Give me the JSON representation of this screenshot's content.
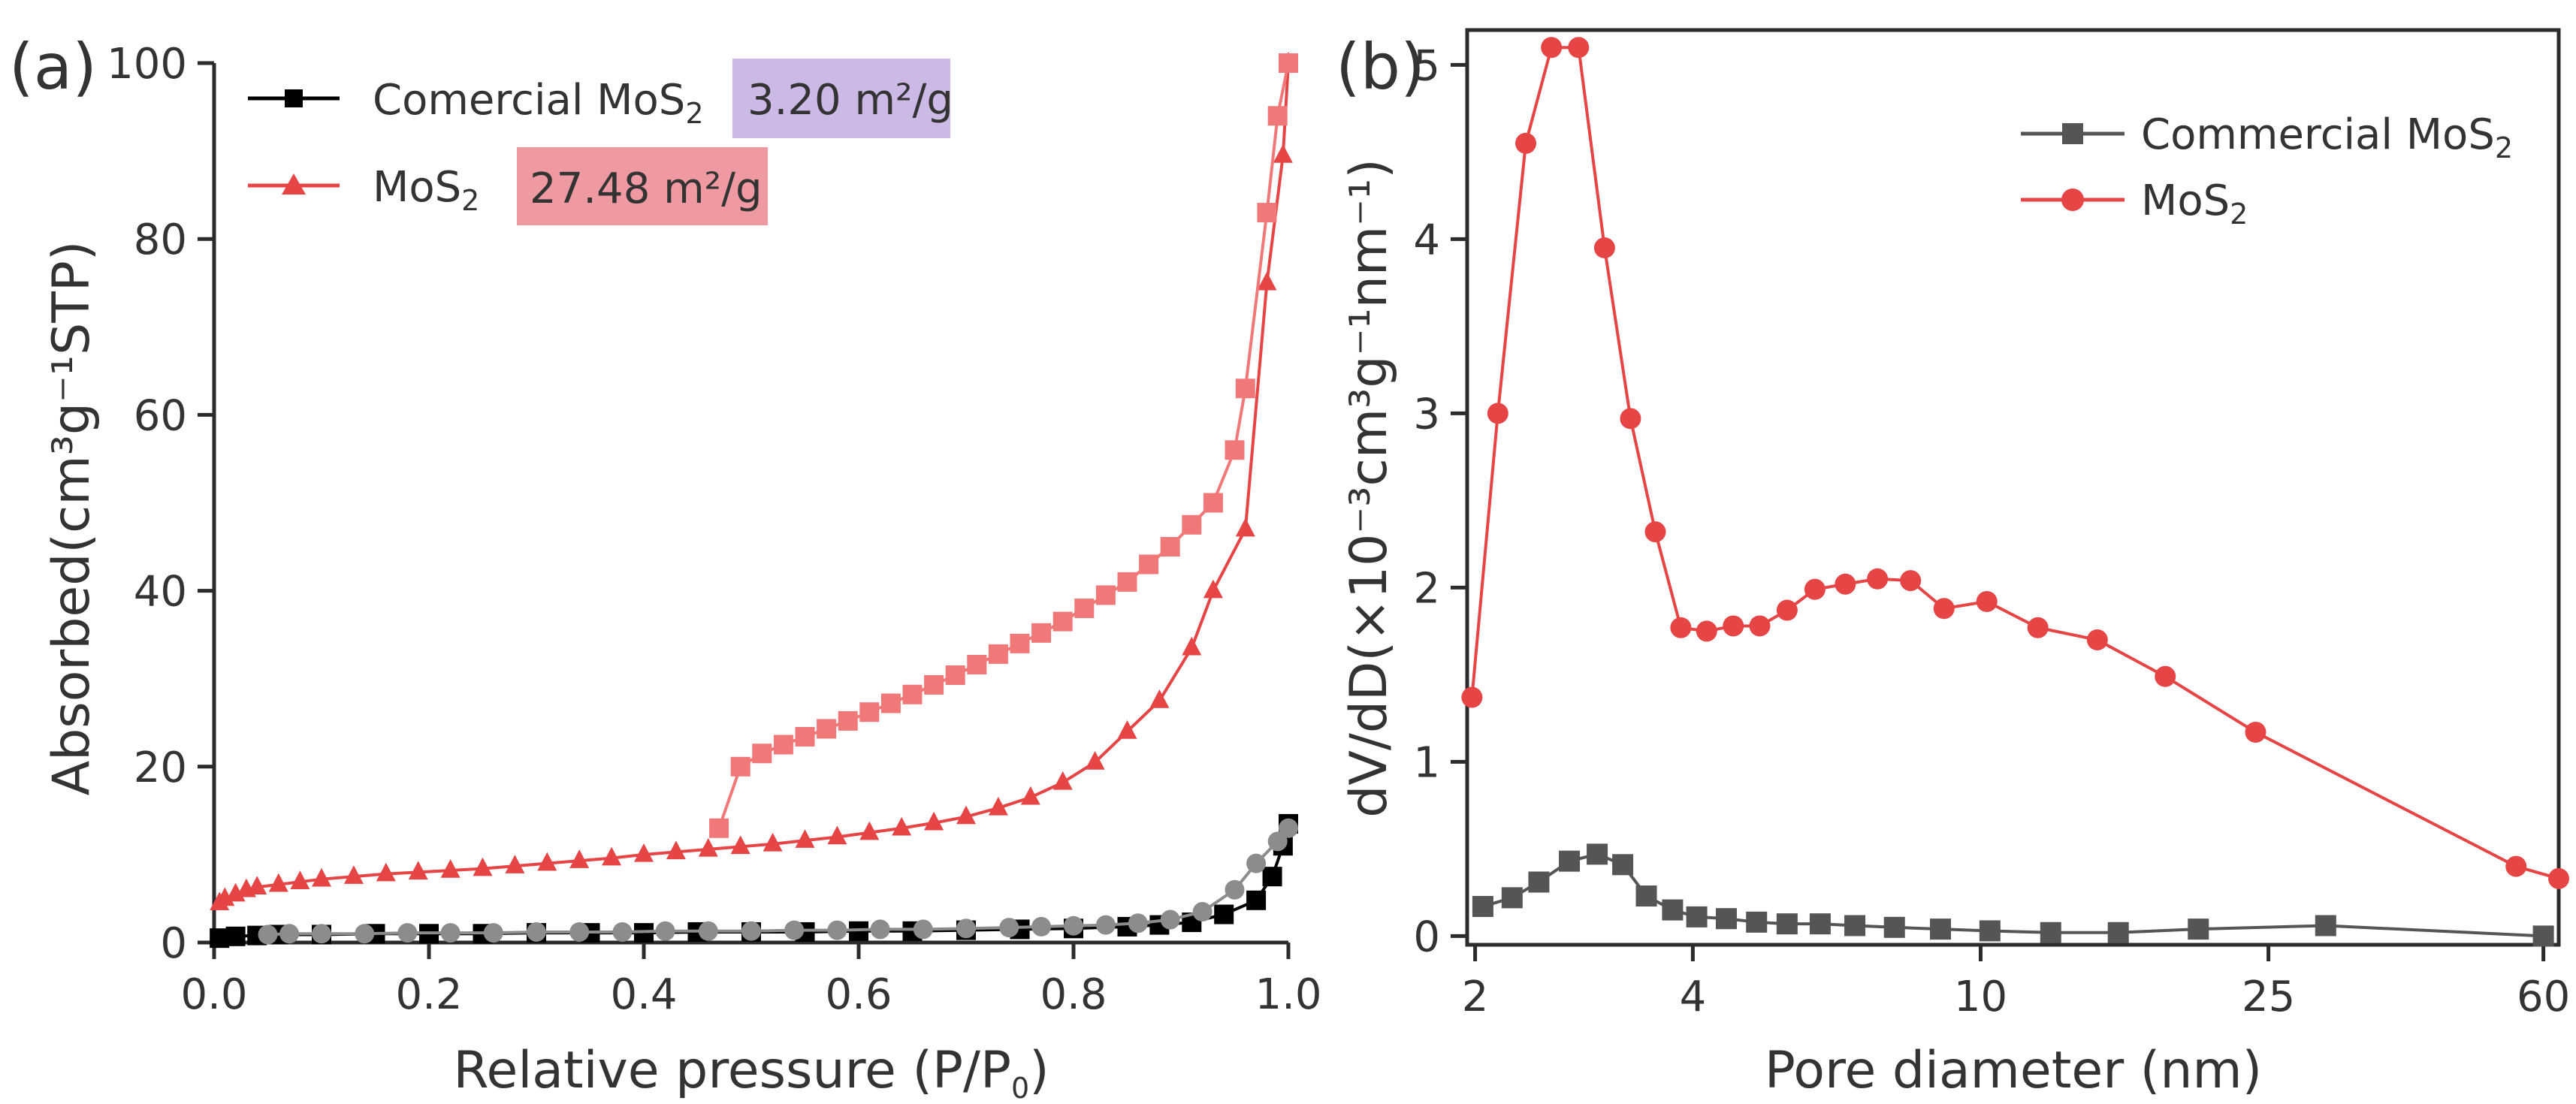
{
  "chart_data": [
    {
      "panel": "(a)",
      "type": "line",
      "title": "",
      "xlabel": "Relative pressure (P/P",
      "xlabel_sub": "0",
      "xlabel_close": ")",
      "ylabel": "Absorbed(cm³g⁻¹STP)",
      "xlim": [
        0.0,
        1.0
      ],
      "ylim": [
        0,
        100
      ],
      "xticks": [
        "0.0",
        "0.2",
        "0.4",
        "0.6",
        "0.8",
        "1.0"
      ],
      "xtick_values": [
        0.0,
        0.2,
        0.4,
        0.6,
        0.8,
        1.0
      ],
      "yticks": [
        "0",
        "20",
        "40",
        "60",
        "80",
        "100"
      ],
      "ytick_values": [
        0,
        20,
        40,
        60,
        80,
        100
      ],
      "legend": [
        {
          "label": "Comercial MoS",
          "sub": "2",
          "marker": "square",
          "color": "#000000",
          "badge": "3.20 m²/g",
          "badge_color": "#cdb9e6"
        },
        {
          "label": "MoS",
          "sub": "2",
          "marker": "triangle",
          "color": "#e64545",
          "badge": "27.48 m²/g",
          "badge_color": "#ef9aa2"
        }
      ],
      "series": [
        {
          "name": "MoS2 adsorption",
          "color": "#e64545",
          "marker": "triangle",
          "x": [
            0.005,
            0.01,
            0.02,
            0.03,
            0.04,
            0.06,
            0.08,
            0.1,
            0.13,
            0.16,
            0.19,
            0.22,
            0.25,
            0.28,
            0.31,
            0.34,
            0.37,
            0.4,
            0.43,
            0.46,
            0.49,
            0.52,
            0.55,
            0.58,
            0.61,
            0.64,
            0.67,
            0.7,
            0.73,
            0.76,
            0.79,
            0.82,
            0.85,
            0.88,
            0.91,
            0.93,
            0.96,
            0.98,
            0.995,
            1.0
          ],
          "y": [
            4.5,
            5.0,
            5.5,
            6.0,
            6.3,
            6.6,
            6.9,
            7.2,
            7.5,
            7.8,
            8.0,
            8.2,
            8.4,
            8.7,
            9.0,
            9.3,
            9.6,
            10.0,
            10.3,
            10.6,
            10.9,
            11.2,
            11.6,
            12.0,
            12.5,
            13.0,
            13.6,
            14.3,
            15.3,
            16.5,
            18.2,
            20.5,
            24.0,
            27.5,
            33.5,
            40.0,
            47.0,
            75.0,
            89.5,
            100.0
          ]
        },
        {
          "name": "MoS2 desorption",
          "color": "#f07878",
          "marker": "square",
          "x": [
            1.0,
            0.99,
            0.98,
            0.96,
            0.95,
            0.93,
            0.91,
            0.89,
            0.87,
            0.85,
            0.83,
            0.81,
            0.79,
            0.77,
            0.75,
            0.73,
            0.71,
            0.69,
            0.67,
            0.65,
            0.63,
            0.61,
            0.59,
            0.57,
            0.55,
            0.53,
            0.51,
            0.49,
            0.47
          ],
          "y": [
            100.0,
            94.0,
            83.0,
            63.0,
            56.0,
            50.0,
            47.5,
            45.0,
            43.0,
            41.0,
            39.5,
            38.0,
            36.5,
            35.2,
            34.0,
            32.8,
            31.6,
            30.4,
            29.3,
            28.2,
            27.2,
            26.2,
            25.2,
            24.3,
            23.4,
            22.5,
            21.5,
            20.0,
            13.0
          ]
        },
        {
          "name": "Commercial MoS2",
          "color": "#000000",
          "marker": "square",
          "x": [
            0.005,
            0.02,
            0.04,
            0.06,
            0.1,
            0.15,
            0.2,
            0.25,
            0.3,
            0.35,
            0.4,
            0.45,
            0.5,
            0.55,
            0.6,
            0.65,
            0.7,
            0.75,
            0.8,
            0.85,
            0.88,
            0.91,
            0.94,
            0.97,
            0.985,
            0.995,
            1.0
          ],
          "y": [
            0.5,
            0.7,
            0.8,
            0.9,
            0.9,
            1.0,
            1.0,
            1.0,
            1.1,
            1.1,
            1.1,
            1.2,
            1.2,
            1.2,
            1.3,
            1.3,
            1.4,
            1.5,
            1.6,
            1.8,
            2.0,
            2.3,
            3.2,
            4.8,
            7.5,
            11.0,
            13.5
          ]
        },
        {
          "name": "Commercial MoS2 desorption",
          "color": "#8c8c8c",
          "marker": "circle",
          "x": [
            1.0,
            0.99,
            0.97,
            0.95,
            0.92,
            0.89,
            0.86,
            0.83,
            0.8,
            0.77,
            0.74,
            0.7,
            0.66,
            0.62,
            0.58,
            0.54,
            0.5,
            0.46,
            0.42,
            0.38,
            0.34,
            0.3,
            0.26,
            0.22,
            0.18,
            0.14,
            0.1,
            0.07,
            0.05
          ],
          "y": [
            13.0,
            11.5,
            9.0,
            6.0,
            3.5,
            2.6,
            2.2,
            2.0,
            1.9,
            1.8,
            1.7,
            1.6,
            1.5,
            1.5,
            1.4,
            1.4,
            1.3,
            1.3,
            1.3,
            1.2,
            1.2,
            1.2,
            1.1,
            1.1,
            1.1,
            1.0,
            1.0,
            1.0,
            0.9
          ]
        }
      ]
    },
    {
      "panel": "(b)",
      "type": "line",
      "title": "",
      "xlabel": "Pore diameter (nm)",
      "ylabel": "dV/dD(×10⁻³cm³g⁻¹nm⁻¹)",
      "xscale": "log",
      "xlim": [
        1.95,
        63
      ],
      "ylim": [
        -0.05,
        5.2
      ],
      "xticks": [
        "2",
        "4",
        "10",
        "25",
        "60"
      ],
      "xtick_values": [
        2,
        4,
        10,
        25,
        60
      ],
      "yticks": [
        "0",
        "1",
        "2",
        "3",
        "4",
        "5"
      ],
      "ytick_values": [
        0,
        1,
        2,
        3,
        4,
        5
      ],
      "legend": [
        {
          "label": "Commercial MoS",
          "sub": "2",
          "marker": "square",
          "color": "#555555"
        },
        {
          "label": "MoS",
          "sub": "2",
          "marker": "circle",
          "color": "#e64545"
        }
      ],
      "series": [
        {
          "name": "MoS2",
          "color": "#e64545",
          "marker": "circle",
          "x": [
            1.98,
            2.15,
            2.35,
            2.55,
            2.78,
            3.02,
            3.28,
            3.55,
            3.85,
            4.18,
            4.55,
            4.95,
            5.4,
            5.9,
            6.5,
            7.2,
            8.0,
            8.9,
            10.2,
            12.0,
            14.5,
            18.0,
            24.0,
            55.0,
            63.0
          ],
          "y": [
            1.37,
            3.0,
            4.55,
            5.1,
            5.1,
            3.95,
            2.97,
            2.32,
            1.77,
            1.75,
            1.78,
            1.78,
            1.87,
            1.99,
            2.02,
            2.05,
            2.04,
            1.88,
            1.92,
            1.77,
            1.7,
            1.49,
            1.17,
            0.4,
            0.33
          ]
        },
        {
          "name": "Commercial MoS2",
          "color": "#555555",
          "marker": "square",
          "x": [
            2.05,
            2.25,
            2.45,
            2.7,
            2.95,
            3.2,
            3.45,
            3.75,
            4.05,
            4.45,
            4.9,
            5.4,
            6.0,
            6.7,
            7.6,
            8.8,
            10.3,
            12.5,
            15.5,
            20.0,
            30.0,
            60.0
          ],
          "y": [
            0.17,
            0.22,
            0.31,
            0.43,
            0.47,
            0.41,
            0.23,
            0.15,
            0.11,
            0.1,
            0.08,
            0.07,
            0.07,
            0.06,
            0.05,
            0.04,
            0.03,
            0.02,
            0.02,
            0.04,
            0.06,
            0.0
          ]
        }
      ]
    }
  ]
}
